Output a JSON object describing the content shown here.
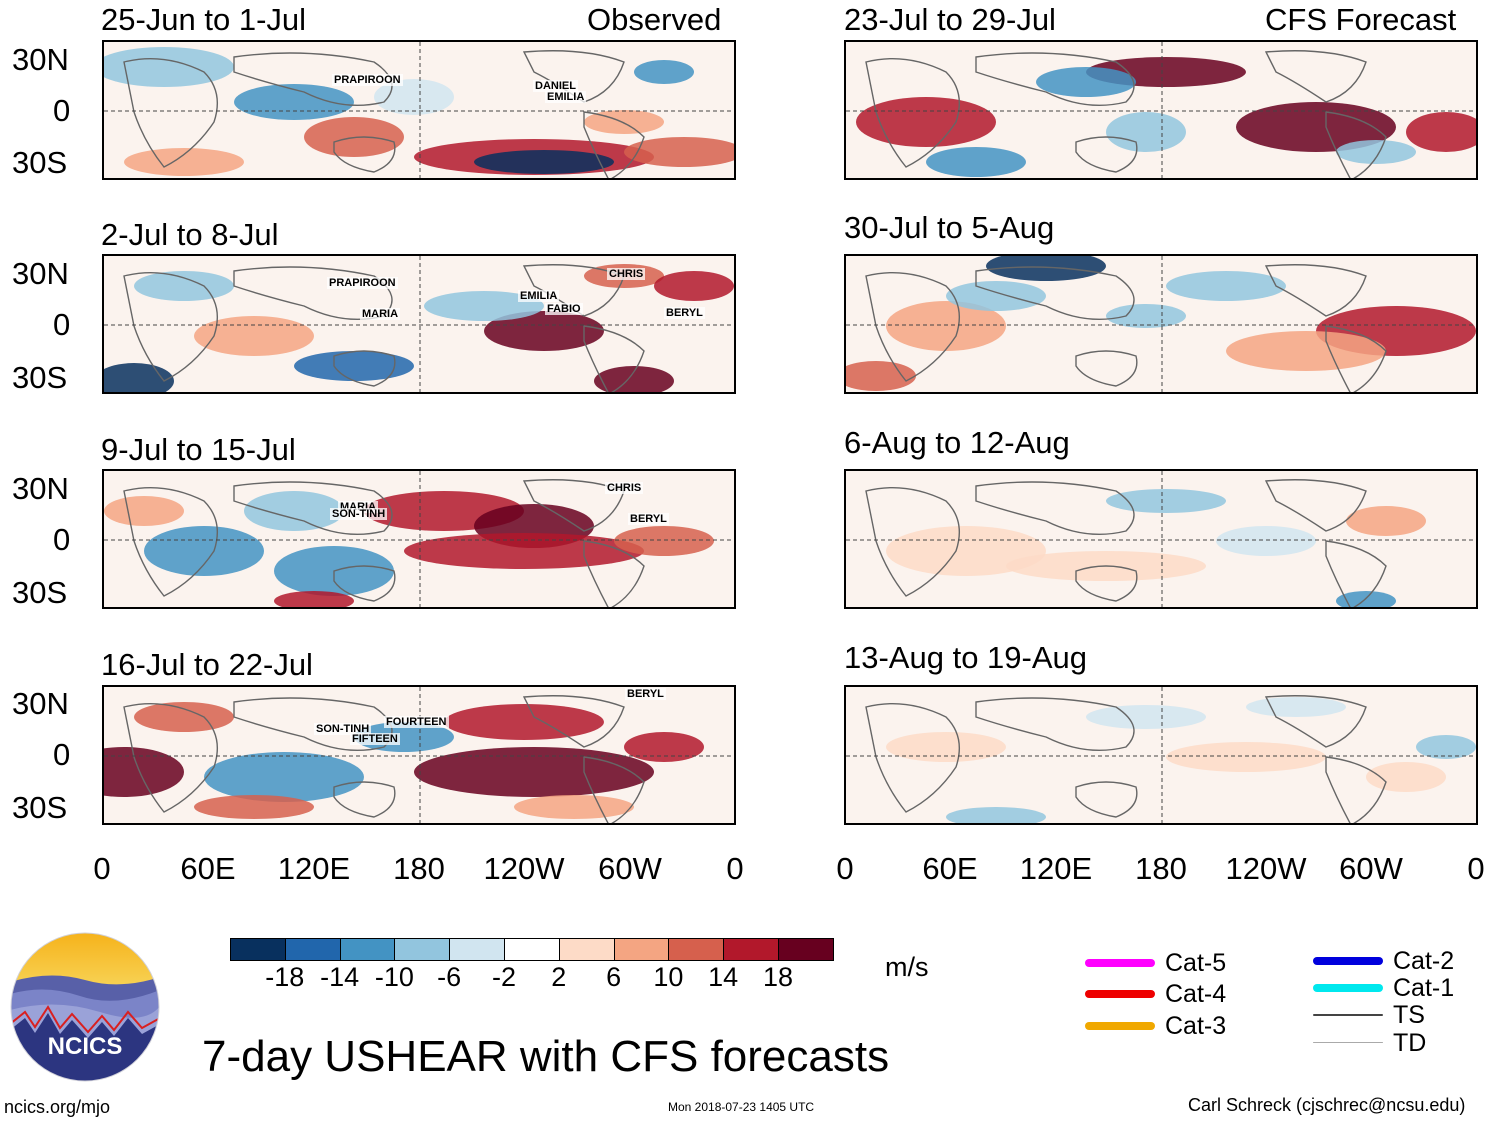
{
  "chart_data": {
    "type": "heatmap",
    "title": "7-day USHEAR with CFS forecasts",
    "units": "m/s",
    "colorbar": {
      "levels": [
        "-18",
        "-14",
        "-10",
        "-6",
        "-2",
        "2",
        "6",
        "10",
        "14",
        "18"
      ],
      "colors": [
        "#08305e",
        "#2166ac",
        "#4393c3",
        "#92c5de",
        "#d1e5f0",
        "#ffffff",
        "#fddbc7",
        "#f4a582",
        "#d6604d",
        "#b2182b",
        "#67001f"
      ]
    },
    "x_ticks": [
      "0",
      "60E",
      "120E",
      "180",
      "120W",
      "60W",
      "0"
    ],
    "y_ticks": [
      "30N",
      "0",
      "30S"
    ],
    "observed_header": "Observed",
    "forecast_header": "CFS Forecast",
    "observed_panels": [
      {
        "period": "25-Jun to 1-Jul",
        "storms": [
          "PRAPIROON",
          "DANIEL",
          "EMILIA"
        ]
      },
      {
        "period": "2-Jul to 8-Jul",
        "storms": [
          "PRAPIROON",
          "MARIA",
          "EMILIA",
          "FABIO",
          "CHRIS",
          "BERYL"
        ]
      },
      {
        "period": "9-Jul to 15-Jul",
        "storms": [
          "MARIA",
          "SON-TINH",
          "CHRIS",
          "BERYL"
        ]
      },
      {
        "period": "16-Jul to 22-Jul",
        "storms": [
          "SON-TINH",
          "FOURTEEN",
          "FIFTEEN",
          "BERYL"
        ]
      }
    ],
    "forecast_panels": [
      {
        "period": "23-Jul to 29-Jul"
      },
      {
        "period": "30-Jul to 5-Aug"
      },
      {
        "period": "6-Aug to 12-Aug"
      },
      {
        "period": "13-Aug to 19-Aug"
      }
    ]
  },
  "legend": [
    {
      "label": "Cat-5",
      "color": "#ff00ff"
    },
    {
      "label": "Cat-4",
      "color": "#ee0000"
    },
    {
      "label": "Cat-3",
      "color": "#f0a800"
    },
    {
      "label": "Cat-2",
      "color": "#0000dd"
    },
    {
      "label": "Cat-1",
      "color": "#00e8ee"
    },
    {
      "label": "TS",
      "color": "#444444"
    },
    {
      "label": "TD",
      "color": "#aaaaaa"
    }
  ],
  "logo": {
    "text": "NCICS"
  },
  "footer": {
    "url": "ncics.org/mjo",
    "timestamp": "Mon 2018-07-23 1405 UTC",
    "author": "Carl Schreck (cjschrec@ncsu.edu)"
  }
}
